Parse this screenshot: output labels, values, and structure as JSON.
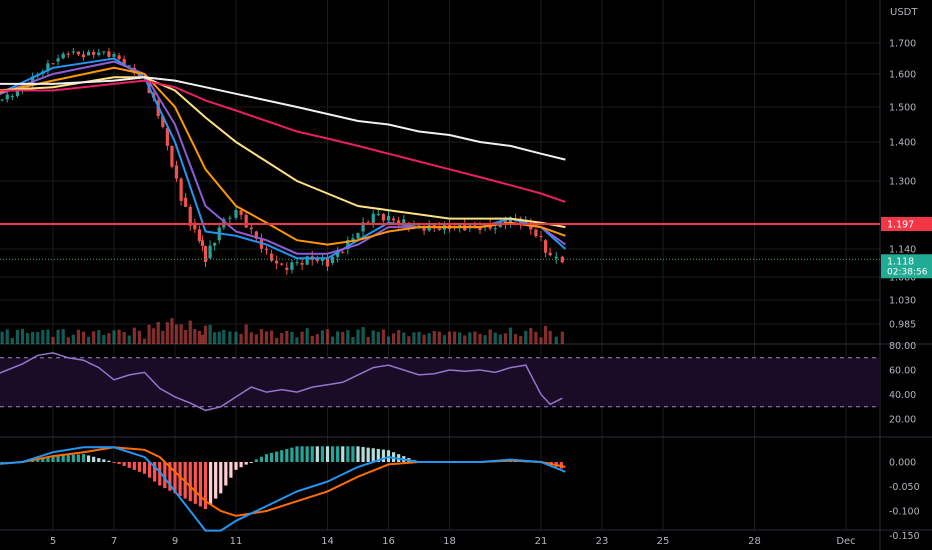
{
  "currency": "USDT",
  "colors": {
    "bg": "#000000",
    "grid": "#1c1c1c",
    "axis_text": "#b2b5be",
    "up": "#26a69a",
    "down": "#ef5350",
    "ema_fast": "#2196f3",
    "ema_mid": "#8e5cd6",
    "ema_orange": "#ff9800",
    "ema_yellow": "#ffe082",
    "ema_red": "#e91e63",
    "ema_white": "#f0f0f0",
    "level_line": "#f23645",
    "price_tag": "#22ab94",
    "rsi": "#9575cd",
    "rsi_band": "#1a0b26",
    "rsi_dash": "#a07fd0",
    "macd": "#2196f3",
    "signal": "#ff6d00"
  },
  "price_axis": {
    "ticks": [
      "1.700",
      "1.600",
      "1.500",
      "1.400",
      "1.300",
      "1.140",
      "1.080",
      "1.030",
      "0.985"
    ],
    "tick_values": [
      1.7,
      1.6,
      1.5,
      1.4,
      1.3,
      1.14,
      1.08,
      1.03,
      0.985
    ]
  },
  "level_tag": {
    "label": "1.197",
    "value": 1.197
  },
  "price_tag": {
    "price": "1.118",
    "countdown": "02:38:56",
    "value": 1.118
  },
  "rsi_axis": {
    "ticks": [
      "80.00",
      "60.00",
      "40.00",
      "20.00"
    ],
    "tick_values": [
      80,
      60,
      40,
      20
    ],
    "upper": 70,
    "lower": 30
  },
  "macd_axis": {
    "ticks": [
      "0.000",
      "-0.050",
      "-0.100",
      "-0.150"
    ],
    "tick_values": [
      0,
      -0.05,
      -0.1,
      -0.15
    ]
  },
  "time_axis": {
    "labels": [
      "5",
      "7",
      "9",
      "11",
      "14",
      "16",
      "18",
      "21",
      "23",
      "25",
      "28",
      "Dec"
    ],
    "days": [
      5,
      7,
      9,
      11,
      14,
      16,
      18,
      21,
      23,
      25,
      28,
      31
    ]
  },
  "chart_data": {
    "type": "line",
    "title": "",
    "symbol_currency": "USDT",
    "price_series_close": {
      "x_days": [
        3,
        3.5,
        4,
        4.5,
        5,
        5.5,
        6,
        6.5,
        7,
        7.5,
        8,
        8.3,
        8.6,
        8.9,
        9.2,
        9.5,
        9.8,
        10,
        10.3,
        10.6,
        11,
        11.5,
        12,
        12.5,
        13,
        13.5,
        14,
        14.5,
        15,
        15.5,
        16,
        16.5,
        17,
        17.5,
        18,
        18.5,
        19,
        19.5,
        20,
        20.5,
        21,
        21.3,
        21.7
      ],
      "close": [
        1.52,
        1.53,
        1.56,
        1.6,
        1.64,
        1.67,
        1.66,
        1.67,
        1.66,
        1.62,
        1.58,
        1.52,
        1.44,
        1.34,
        1.26,
        1.2,
        1.16,
        1.12,
        1.16,
        1.21,
        1.23,
        1.18,
        1.13,
        1.1,
        1.11,
        1.12,
        1.11,
        1.14,
        1.18,
        1.22,
        1.21,
        1.2,
        1.19,
        1.19,
        1.19,
        1.19,
        1.19,
        1.19,
        1.21,
        1.2,
        1.16,
        1.12,
        1.118
      ]
    },
    "moving_averages": [
      {
        "color_key": "ema_fast",
        "x_days": [
          3,
          5,
          7,
          8,
          9,
          10,
          11,
          12,
          13,
          14,
          15,
          16,
          17,
          18,
          19,
          20,
          21,
          21.8
        ],
        "values": [
          1.53,
          1.62,
          1.65,
          1.59,
          1.4,
          1.18,
          1.17,
          1.15,
          1.12,
          1.12,
          1.16,
          1.2,
          1.19,
          1.19,
          1.19,
          1.21,
          1.19,
          1.14
        ]
      },
      {
        "color_key": "ema_mid",
        "x_days": [
          3,
          5,
          7,
          8,
          9,
          10,
          11,
          12,
          13,
          14,
          15,
          16,
          17,
          18,
          19,
          20,
          21,
          21.8
        ],
        "values": [
          1.53,
          1.6,
          1.64,
          1.6,
          1.45,
          1.24,
          1.18,
          1.16,
          1.13,
          1.13,
          1.15,
          1.19,
          1.19,
          1.19,
          1.19,
          1.2,
          1.19,
          1.15
        ]
      },
      {
        "color_key": "ema_orange",
        "x_days": [
          3,
          5,
          7,
          8,
          9,
          10,
          11,
          12,
          13,
          14,
          15,
          16,
          17,
          18,
          19,
          20,
          21,
          21.8
        ],
        "values": [
          1.54,
          1.58,
          1.62,
          1.6,
          1.5,
          1.33,
          1.24,
          1.2,
          1.16,
          1.15,
          1.16,
          1.18,
          1.19,
          1.19,
          1.19,
          1.2,
          1.19,
          1.17
        ]
      },
      {
        "color_key": "ema_yellow",
        "x_days": [
          3,
          5,
          7,
          8,
          9,
          10,
          11,
          12,
          13,
          14,
          15,
          16,
          17,
          18,
          19,
          20,
          21,
          21.8
        ],
        "values": [
          1.55,
          1.56,
          1.59,
          1.59,
          1.55,
          1.47,
          1.4,
          1.35,
          1.3,
          1.27,
          1.24,
          1.23,
          1.22,
          1.21,
          1.21,
          1.21,
          1.2,
          1.19
        ]
      },
      {
        "color_key": "ema_red",
        "x_days": [
          3,
          5,
          7,
          8,
          9,
          10,
          11,
          12,
          13,
          14,
          15,
          16,
          17,
          18,
          19,
          20,
          21,
          21.8
        ],
        "values": [
          1.55,
          1.55,
          1.57,
          1.58,
          1.56,
          1.52,
          1.49,
          1.46,
          1.43,
          1.41,
          1.39,
          1.37,
          1.35,
          1.33,
          1.31,
          1.29,
          1.27,
          1.25
        ]
      },
      {
        "color_key": "ema_white",
        "x_days": [
          3,
          5,
          7,
          8,
          9,
          10,
          11,
          12,
          13,
          14,
          15,
          16,
          17,
          18,
          19,
          20,
          21,
          21.8
        ],
        "values": [
          1.57,
          1.57,
          1.58,
          1.59,
          1.58,
          1.56,
          1.54,
          1.52,
          1.5,
          1.48,
          1.46,
          1.45,
          1.43,
          1.42,
          1.4,
          1.39,
          1.37,
          1.355
        ]
      }
    ],
    "rsi": {
      "x_days": [
        3,
        3.5,
        4,
        4.5,
        5,
        5.5,
        6,
        6.5,
        7,
        7.5,
        8,
        8.5,
        9,
        9.5,
        10,
        10.5,
        11,
        11.5,
        12,
        12.5,
        13,
        13.5,
        14,
        14.5,
        15,
        15.5,
        16,
        16.5,
        17,
        17.5,
        18,
        18.5,
        19,
        19.5,
        20,
        20.5,
        21,
        21.3,
        21.7
      ],
      "values": [
        55,
        60,
        65,
        72,
        74,
        70,
        68,
        62,
        52,
        56,
        58,
        45,
        38,
        33,
        27,
        30,
        38,
        46,
        42,
        44,
        42,
        46,
        48,
        50,
        56,
        62,
        64,
        60,
        56,
        57,
        60,
        59,
        60,
        58,
        62,
        64,
        40,
        32,
        37
      ]
    },
    "macd": {
      "x_days": [
        3,
        4,
        5,
        6,
        7,
        8,
        8.5,
        9,
        9.5,
        10,
        10.5,
        11,
        12,
        13,
        14,
        15,
        16,
        17,
        18,
        19,
        20,
        21,
        21.8
      ],
      "macd": [
        -0.005,
        0.0,
        0.02,
        0.03,
        0.03,
        0.01,
        -0.02,
        -0.06,
        -0.1,
        -0.14,
        -0.14,
        -0.12,
        -0.09,
        -0.06,
        -0.04,
        -0.01,
        0.01,
        0.0,
        0.0,
        0.0,
        0.005,
        0.0,
        -0.02
      ],
      "signal": [
        -0.005,
        0.0,
        0.012,
        0.02,
        0.03,
        0.025,
        0.01,
        -0.02,
        -0.05,
        -0.08,
        -0.1,
        -0.11,
        -0.1,
        -0.08,
        -0.06,
        -0.03,
        -0.005,
        0.0,
        0.0,
        0.0,
        0.003,
        0.0,
        -0.01
      ]
    }
  }
}
